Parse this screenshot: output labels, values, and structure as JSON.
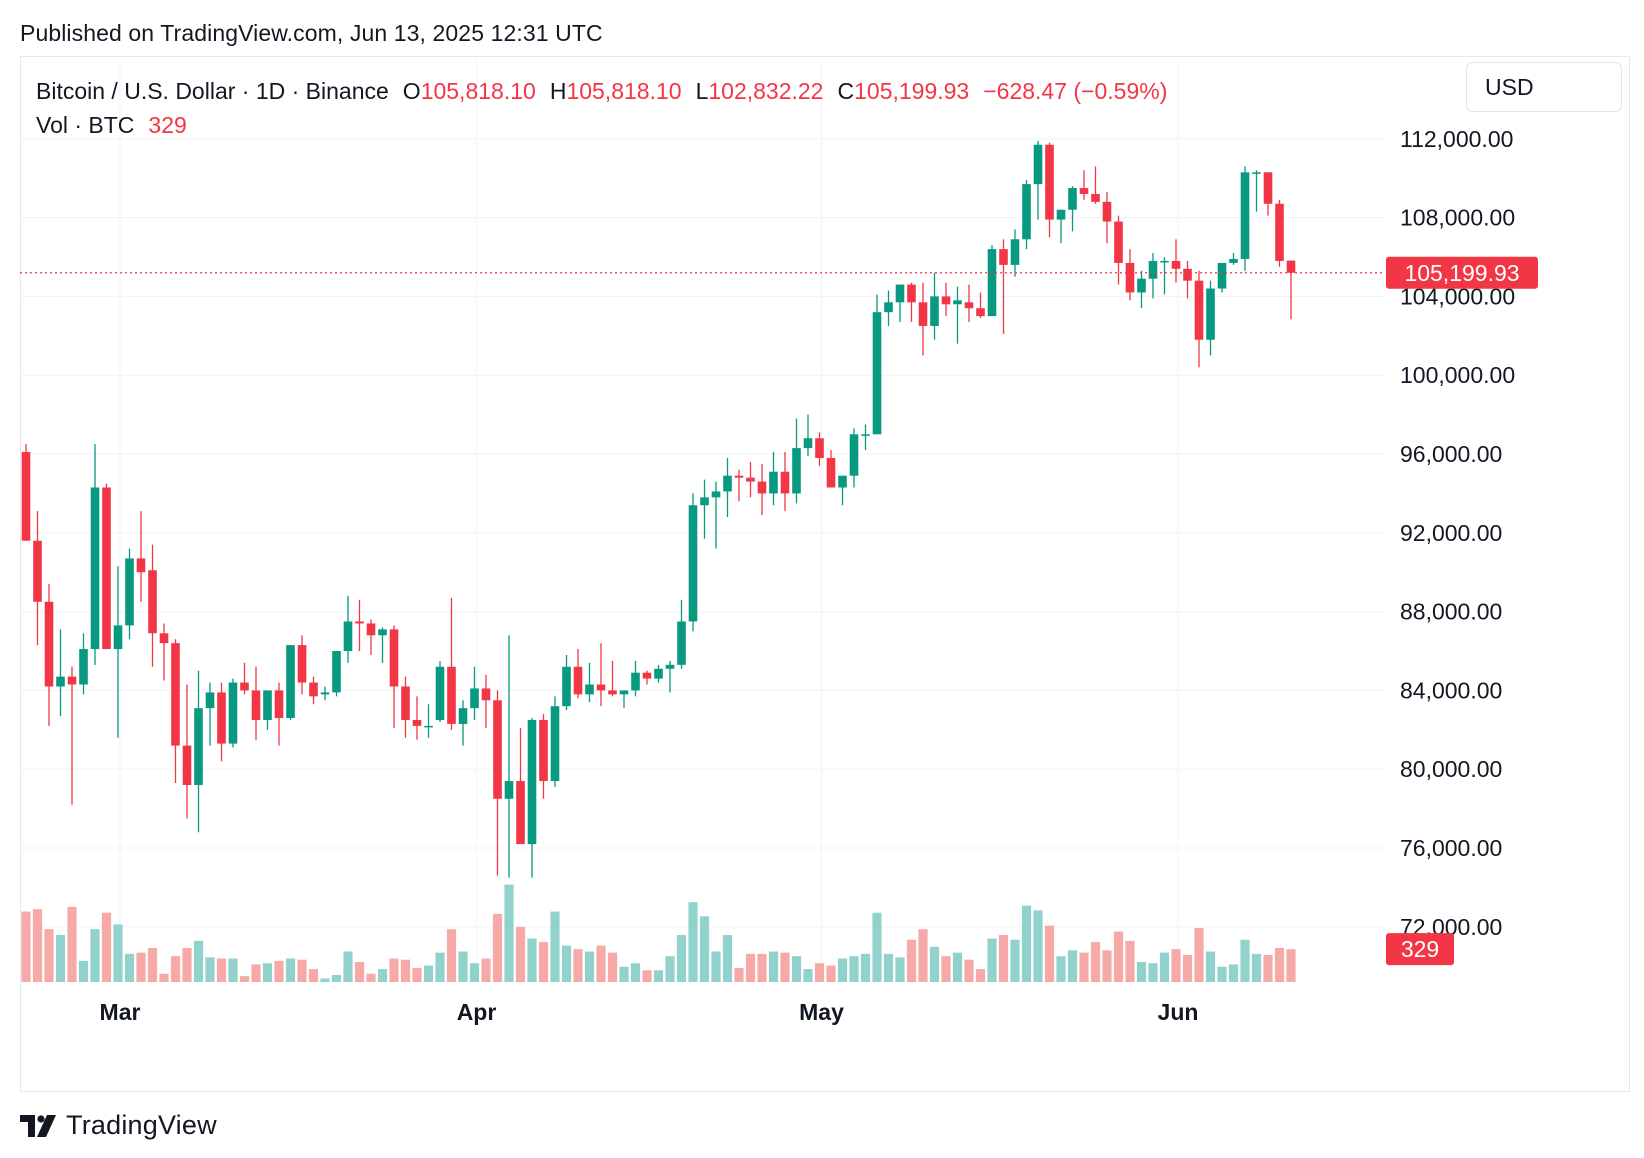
{
  "published": "Published on TradingView.com, Jun 13, 2025 12:31 UTC",
  "legend": {
    "symbol": "Bitcoin / U.S. Dollar · 1D · Binance",
    "o_label": "O",
    "o_value": "105,818.10",
    "h_label": "H",
    "h_value": "105,818.10",
    "l_label": "L",
    "l_value": "102,832.22",
    "c_label": "C",
    "c_value": "105,199.93",
    "change": "−628.47 (−0.59%)",
    "vol_label": "Vol · BTC",
    "vol_value": "329"
  },
  "currency_button": "USD",
  "footer": {
    "brand": "TradingView",
    "logo_icon": "tradingview-logo-icon"
  },
  "colors": {
    "up": "#089981",
    "down": "#f23645",
    "up_volume": "#92d2cc",
    "down_volume": "#f7a9a7",
    "grid": "#f0f3fa",
    "axis_text": "#131722"
  },
  "chart_data": {
    "type": "candlestick",
    "title": "Bitcoin / U.S. Dollar · 1D · Binance",
    "x_tick_labels": [
      "Mar",
      "Apr",
      "May",
      "Jun"
    ],
    "x_tick_indices": [
      4,
      35,
      65,
      96
    ],
    "y_axis": {
      "ylim": [
        69200,
        116000
      ],
      "ticks": [
        112000,
        108000,
        104000,
        100000,
        96000,
        92000,
        88000,
        84000,
        80000,
        76000,
        72000
      ],
      "tick_labels": [
        "112,000.00",
        "108,000.00",
        "104,000.00",
        "100,000.00",
        "96,000.00",
        "92,000.00",
        "88,000.00",
        "84,000.00",
        "80,000.00",
        "76,000.00",
        "72,000.00"
      ]
    },
    "last_price": 105199.93,
    "last_price_label": "105,199.93",
    "last_volume_label": "329",
    "volume_scale_max": 115,
    "candles": [
      [
        96100,
        96500,
        91600,
        91600,
        60
      ],
      [
        91600,
        93100,
        86300,
        88500,
        62
      ],
      [
        88500,
        89400,
        82200,
        84200,
        45
      ],
      [
        84200,
        87100,
        82700,
        84700,
        40
      ],
      [
        84700,
        85200,
        78200,
        84300,
        64
      ],
      [
        84300,
        86900,
        83800,
        86100,
        18
      ],
      [
        86100,
        96500,
        85300,
        94300,
        45
      ],
      [
        94300,
        94500,
        86200,
        86100,
        59
      ],
      [
        86100,
        90300,
        81600,
        87300,
        49
      ],
      [
        87300,
        91200,
        86600,
        90700,
        24
      ],
      [
        90700,
        93100,
        88500,
        90000,
        25
      ],
      [
        90100,
        91400,
        85200,
        86900,
        29
      ],
      [
        86900,
        87400,
        84500,
        86400,
        7
      ],
      [
        86400,
        86600,
        79300,
        81200,
        22
      ],
      [
        81200,
        84300,
        77500,
        79200,
        29
      ],
      [
        79200,
        85000,
        76800,
        83100,
        35
      ],
      [
        83100,
        84400,
        81200,
        83900,
        21
      ],
      [
        83900,
        84400,
        80400,
        81300,
        20
      ],
      [
        81300,
        84600,
        81100,
        84400,
        20
      ],
      [
        84400,
        85400,
        83800,
        84000,
        5
      ],
      [
        84000,
        85200,
        81500,
        82500,
        15
      ],
      [
        82500,
        84000,
        82000,
        84000,
        16
      ],
      [
        84000,
        84400,
        81200,
        82600,
        18
      ],
      [
        82600,
        86000,
        82500,
        86300,
        20
      ],
      [
        86300,
        86800,
        83800,
        84400,
        19
      ],
      [
        84400,
        84700,
        83300,
        83700,
        11
      ],
      [
        83800,
        84200,
        83500,
        83900,
        3
      ],
      [
        83900,
        86000,
        83700,
        86000,
        6
      ],
      [
        86000,
        88800,
        85400,
        87500,
        26
      ],
      [
        87500,
        88600,
        86000,
        87400,
        17
      ],
      [
        87400,
        87600,
        85800,
        86800,
        7
      ],
      [
        86800,
        87200,
        85400,
        87100,
        11
      ],
      [
        87100,
        87300,
        82100,
        84200,
        20
      ],
      [
        84200,
        84700,
        81600,
        82500,
        19
      ],
      [
        82500,
        83700,
        81500,
        82200,
        12
      ],
      [
        82200,
        83300,
        81600,
        82200,
        14
      ],
      [
        82500,
        85500,
        82400,
        85200,
        25
      ],
      [
        85200,
        88700,
        82000,
        82300,
        45
      ],
      [
        82300,
        83500,
        81200,
        83100,
        26
      ],
      [
        83100,
        85200,
        82500,
        84100,
        16
      ],
      [
        84100,
        84800,
        82100,
        83500,
        20
      ],
      [
        83500,
        84000,
        74600,
        78500,
        58
      ],
      [
        78500,
        86800,
        74500,
        79400,
        83
      ],
      [
        79400,
        82100,
        76500,
        76200,
        47
      ],
      [
        76200,
        82600,
        74500,
        82500,
        37
      ],
      [
        82500,
        82800,
        78500,
        79400,
        34
      ],
      [
        79400,
        83700,
        79100,
        83200,
        60
      ],
      [
        83200,
        85800,
        83000,
        85200,
        31
      ],
      [
        85200,
        86100,
        83600,
        83800,
        28
      ],
      [
        83800,
        85400,
        83400,
        84300,
        26
      ],
      [
        84300,
        86400,
        83200,
        84000,
        31
      ],
      [
        84000,
        85500,
        83700,
        83800,
        25
      ],
      [
        83800,
        84000,
        83100,
        84000,
        13
      ],
      [
        84000,
        85500,
        83700,
        84900,
        16
      ],
      [
        84900,
        85000,
        84300,
        84600,
        10
      ],
      [
        84600,
        85300,
        84400,
        85100,
        10
      ],
      [
        85100,
        85500,
        83900,
        85300,
        22
      ],
      [
        85300,
        88600,
        85100,
        87500,
        40
      ],
      [
        87500,
        94000,
        87000,
        93400,
        68
      ],
      [
        93400,
        94700,
        91700,
        93800,
        56
      ],
      [
        93800,
        94600,
        91200,
        94100,
        26
      ],
      [
        94100,
        95800,
        92800,
        94900,
        40
      ],
      [
        94900,
        95200,
        93600,
        94800,
        12
      ],
      [
        94800,
        95600,
        93800,
        94600,
        24
      ],
      [
        94600,
        95500,
        92900,
        94000,
        24
      ],
      [
        94000,
        96100,
        93400,
        95100,
        26
      ],
      [
        95100,
        96100,
        93100,
        94000,
        25
      ],
      [
        94000,
        97800,
        93500,
        96300,
        22
      ],
      [
        96300,
        98000,
        95900,
        96800,
        11
      ],
      [
        96800,
        97100,
        95400,
        95800,
        16
      ],
      [
        95800,
        96200,
        94500,
        94300,
        14
      ],
      [
        94300,
        94900,
        93400,
        94900,
        20
      ],
      [
        94900,
        97300,
        94300,
        97000,
        22
      ],
      [
        97000,
        97500,
        96200,
        97000,
        24
      ],
      [
        97000,
        104100,
        97000,
        103200,
        59
      ],
      [
        103200,
        104300,
        102500,
        103700,
        24
      ],
      [
        103700,
        104500,
        102700,
        104600,
        21
      ],
      [
        104600,
        104700,
        102700,
        103700,
        36
      ],
      [
        103700,
        104700,
        101000,
        102500,
        45
      ],
      [
        102500,
        105200,
        101800,
        104000,
        30
      ],
      [
        104000,
        104700,
        103000,
        103600,
        22
      ],
      [
        103600,
        104500,
        101600,
        103800,
        25
      ],
      [
        103700,
        104600,
        102700,
        103400,
        19
      ],
      [
        103400,
        104200,
        102900,
        103000,
        11
      ],
      [
        103000,
        106600,
        103000,
        106400,
        37
      ],
      [
        106400,
        106900,
        102100,
        105600,
        40
      ],
      [
        105600,
        107400,
        105000,
        106900,
        36
      ],
      [
        106900,
        109900,
        106400,
        109700,
        65
      ],
      [
        109700,
        111900,
        107900,
        111700,
        61
      ],
      [
        111700,
        111800,
        107000,
        107900,
        48
      ],
      [
        107900,
        108400,
        106700,
        108400,
        22
      ],
      [
        108400,
        109600,
        107300,
        109500,
        27
      ],
      [
        109500,
        110400,
        108900,
        109200,
        25
      ],
      [
        109200,
        110600,
        108700,
        108800,
        34
      ],
      [
        108800,
        109300,
        106700,
        107800,
        27
      ],
      [
        107800,
        108100,
        104600,
        105700,
        43
      ],
      [
        105700,
        106400,
        103800,
        104200,
        35
      ],
      [
        104200,
        105300,
        103400,
        104900,
        17
      ],
      [
        104900,
        106200,
        103900,
        105800,
        16
      ],
      [
        105800,
        106000,
        104100,
        105800,
        25
      ],
      [
        105800,
        106900,
        104700,
        105400,
        28
      ],
      [
        105400,
        105800,
        103900,
        104800,
        23
      ],
      [
        104800,
        105300,
        100400,
        101800,
        46
      ],
      [
        101800,
        104800,
        101000,
        104400,
        26
      ],
      [
        104400,
        105600,
        104200,
        105700,
        13
      ],
      [
        105700,
        106200,
        105600,
        105900,
        15
      ],
      [
        105900,
        110600,
        105300,
        110300,
        36
      ],
      [
        110300,
        110400,
        108300,
        110300,
        24
      ],
      [
        110300,
        110300,
        108100,
        108700,
        23
      ],
      [
        108700,
        108900,
        105500,
        105800,
        29
      ],
      [
        105818,
        105818,
        102832,
        105200,
        28
      ]
    ]
  }
}
